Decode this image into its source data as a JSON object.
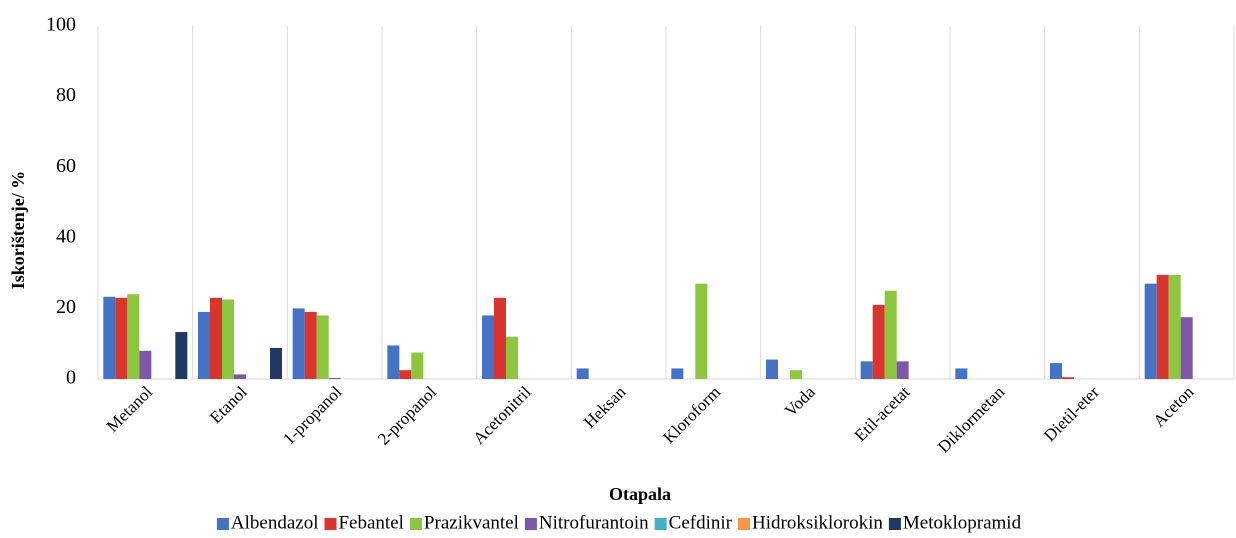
{
  "chart_data": {
    "type": "bar",
    "y_label": "Iskorištenje/ %",
    "x_label": "Otapala",
    "categories": [
      "Metanol",
      "Etanol",
      "1-propanol",
      "2-propanol",
      "Acetonitril",
      "Heksan",
      "Kloroform",
      "Voda",
      "Etil-acetat",
      "Diklormetan",
      "Dietil-eter",
      "Aceton"
    ],
    "series": [
      {
        "name": "Albendazol",
        "color": "#4472c4",
        "values": [
          23.3,
          19,
          20,
          9.5,
          18,
          3,
          3,
          5.5,
          5,
          3,
          4.5,
          27
        ]
      },
      {
        "name": "Febantel",
        "color": "#d9352f",
        "values": [
          23,
          23,
          19,
          2.5,
          23,
          0,
          0,
          0,
          21,
          0,
          0.5,
          29.5
        ]
      },
      {
        "name": "Prazikvantel",
        "color": "#8cc63f",
        "values": [
          24,
          22.5,
          18,
          7.5,
          12,
          0,
          27,
          2.5,
          25,
          0,
          0,
          29.5
        ]
      },
      {
        "name": "Nitrofurantoin",
        "color": "#7f57a8",
        "values": [
          8,
          1.3,
          0.3,
          0,
          0,
          0,
          0,
          0,
          5,
          0,
          0,
          17.5
        ]
      },
      {
        "name": "Cefdinir",
        "color": "#3fb0c8",
        "values": [
          0,
          0,
          0,
          0,
          0,
          0,
          0,
          0,
          0,
          0,
          0,
          0
        ]
      },
      {
        "name": "Hidroksiklorokin",
        "color": "#f79646",
        "values": [
          0,
          0,
          0,
          0,
          0,
          0,
          0,
          0,
          0,
          0,
          0,
          0
        ]
      },
      {
        "name": "Metoklopramid",
        "color": "#1f3864",
        "values": [
          13.3,
          8.8,
          0,
          0,
          0,
          0,
          0,
          0,
          0,
          0,
          0,
          0
        ]
      }
    ],
    "ylim": [
      0,
      100
    ],
    "yticks": [
      0,
      20,
      40,
      60,
      80,
      100
    ],
    "grid": false,
    "legend": "bottom"
  }
}
